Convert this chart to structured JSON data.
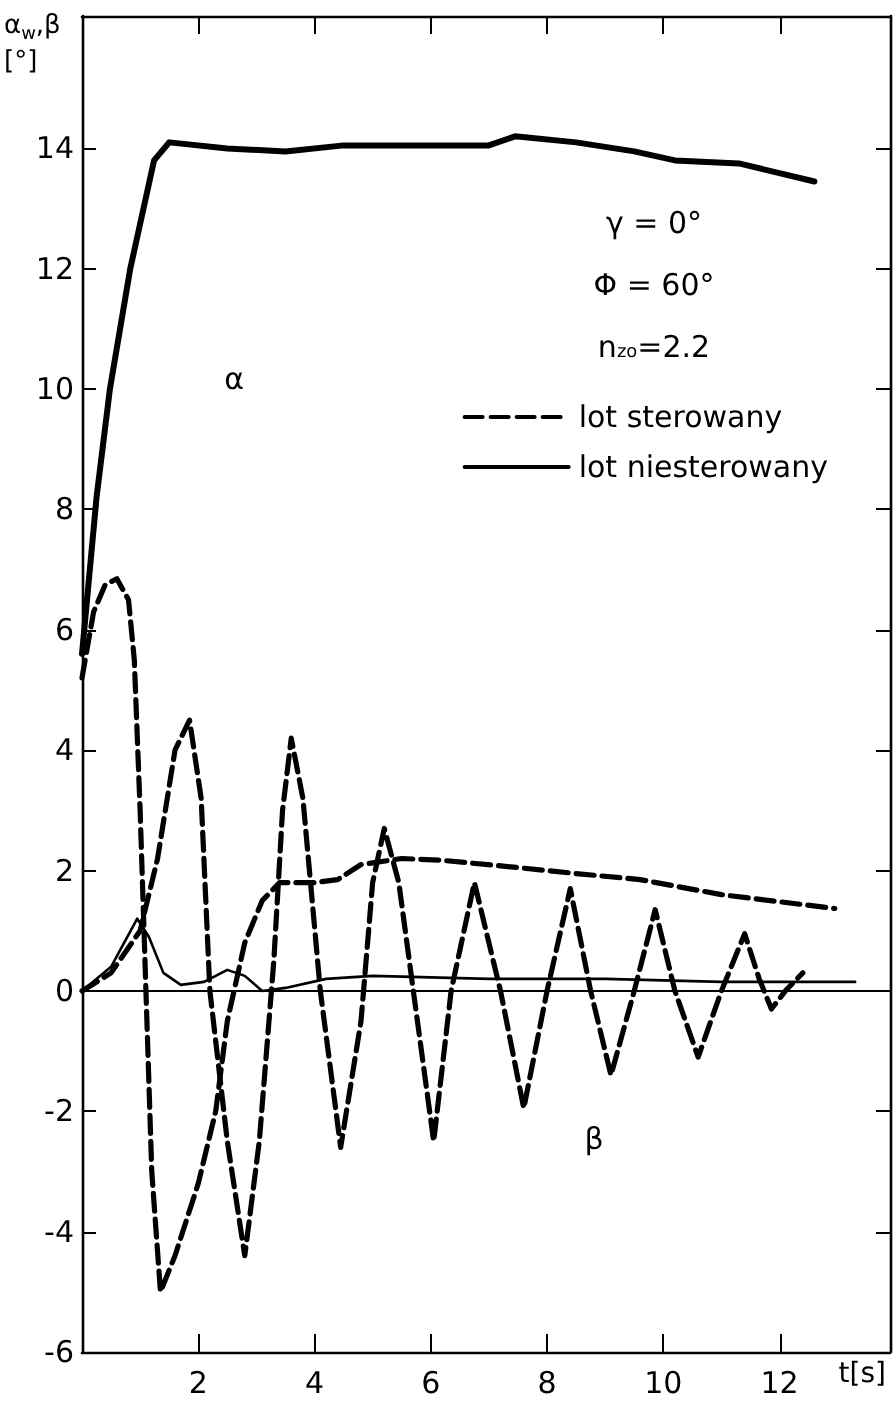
{
  "chart_data": {
    "type": "line",
    "ylabel": "α$_{w}$,β [°]",
    "xlabel": "t[s]",
    "xlim": [
      0,
      13.9
    ],
    "ylim": [
      -6,
      16.2
    ],
    "xticks": [
      2,
      4,
      6,
      8,
      10,
      12
    ],
    "yticks": [
      -6,
      -4,
      -2,
      0,
      2,
      4,
      6,
      8,
      10,
      12,
      14
    ],
    "grid": false,
    "legend": "right",
    "marker": "none",
    "ref_lines": [
      {
        "axis": "y",
        "value": 0,
        "color": "#000000",
        "line_style": "solid"
      }
    ],
    "annotations": [
      "γ = 0°",
      "Φ = 60°",
      "n$_{zo}$=2.2",
      "α",
      "β"
    ],
    "series": [
      {
        "color": "#000000",
        "line_style": "solid",
        "x": [
          0,
          0.25,
          0.48,
          0.83,
          1.24,
          1.5,
          2.5,
          3.5,
          4.5,
          5.5,
          7.0,
          7.45,
          8.5,
          9.5,
          10.2,
          11.3,
          12.6
        ],
        "values": [
          5.6,
          8.2,
          10,
          12,
          13.8,
          14.1,
          14.0,
          13.95,
          14.05,
          14.05,
          14.05,
          14.2,
          14.1,
          13.95,
          13.8,
          13.75,
          13.45
        ]
      },
      {
        "name": "lot sterowany",
        "color": "#000000",
        "line_style": "dashed",
        "x": [
          0,
          0.2,
          0.4,
          0.6,
          0.8,
          0.9,
          1.0,
          1.1,
          1.2,
          1.35,
          1.6,
          2.0,
          2.3,
          2.5,
          2.8,
          3.1,
          3.4,
          4.0,
          4.4,
          4.8,
          5.5,
          6.2,
          7.5,
          8.5,
          9.6,
          11.0,
          12.95
        ],
        "values": [
          5.2,
          6.3,
          6.75,
          6.85,
          6.5,
          5.5,
          3,
          0,
          -3,
          -5.0,
          -4.4,
          -3.2,
          -2.0,
          -0.5,
          0.8,
          1.5,
          1.8,
          1.8,
          1.85,
          2.1,
          2.2,
          2.17,
          2.05,
          1.95,
          1.85,
          1.6,
          1.37
        ]
      },
      {
        "color": "#000000",
        "line_style": "dashed",
        "x": [
          0,
          0.5,
          1.0,
          1.3,
          1.6,
          1.85,
          2.05,
          2.2,
          2.5,
          2.8,
          3.05,
          3.3,
          3.45,
          3.6,
          3.8,
          4.1,
          4.45,
          4.8,
          5.0,
          5.2,
          5.45,
          5.7,
          6.05,
          6.35,
          6.75,
          7.2,
          7.6,
          8.0,
          8.4,
          8.75,
          9.1,
          9.5,
          9.86,
          10.2,
          10.6,
          11.0,
          11.4,
          11.65,
          11.86,
          12.1,
          12.4
        ],
        "values": [
          0,
          0.3,
          1.0,
          2.2,
          4.0,
          4.5,
          3.2,
          0,
          -2.5,
          -4.4,
          -2.5,
          0.5,
          3,
          4.2,
          3.2,
          0,
          -2.6,
          -0.5,
          1.8,
          2.7,
          1.8,
          0,
          -2.5,
          0,
          1.8,
          0,
          -1.95,
          0,
          1.7,
          0,
          -1.4,
          0,
          1.35,
          0,
          -1.1,
          0,
          0.95,
          0.2,
          -0.3,
          0,
          0.3
        ]
      },
      {
        "name": "lot niesterowany",
        "color": "#000000",
        "line_style": "solid",
        "x": [
          0,
          0.5,
          0.95,
          1.15,
          1.4,
          1.7,
          2.1,
          2.5,
          2.8,
          3.1,
          3.5,
          4.2,
          5.0,
          7.0,
          9.0,
          11.0,
          13.3
        ],
        "values": [
          0,
          0.4,
          1.2,
          0.9,
          0.3,
          0.1,
          0.15,
          0.35,
          0.25,
          0,
          0.05,
          0.2,
          0.25,
          0.2,
          0.2,
          0.15,
          0.15
        ]
      }
    ]
  }
}
